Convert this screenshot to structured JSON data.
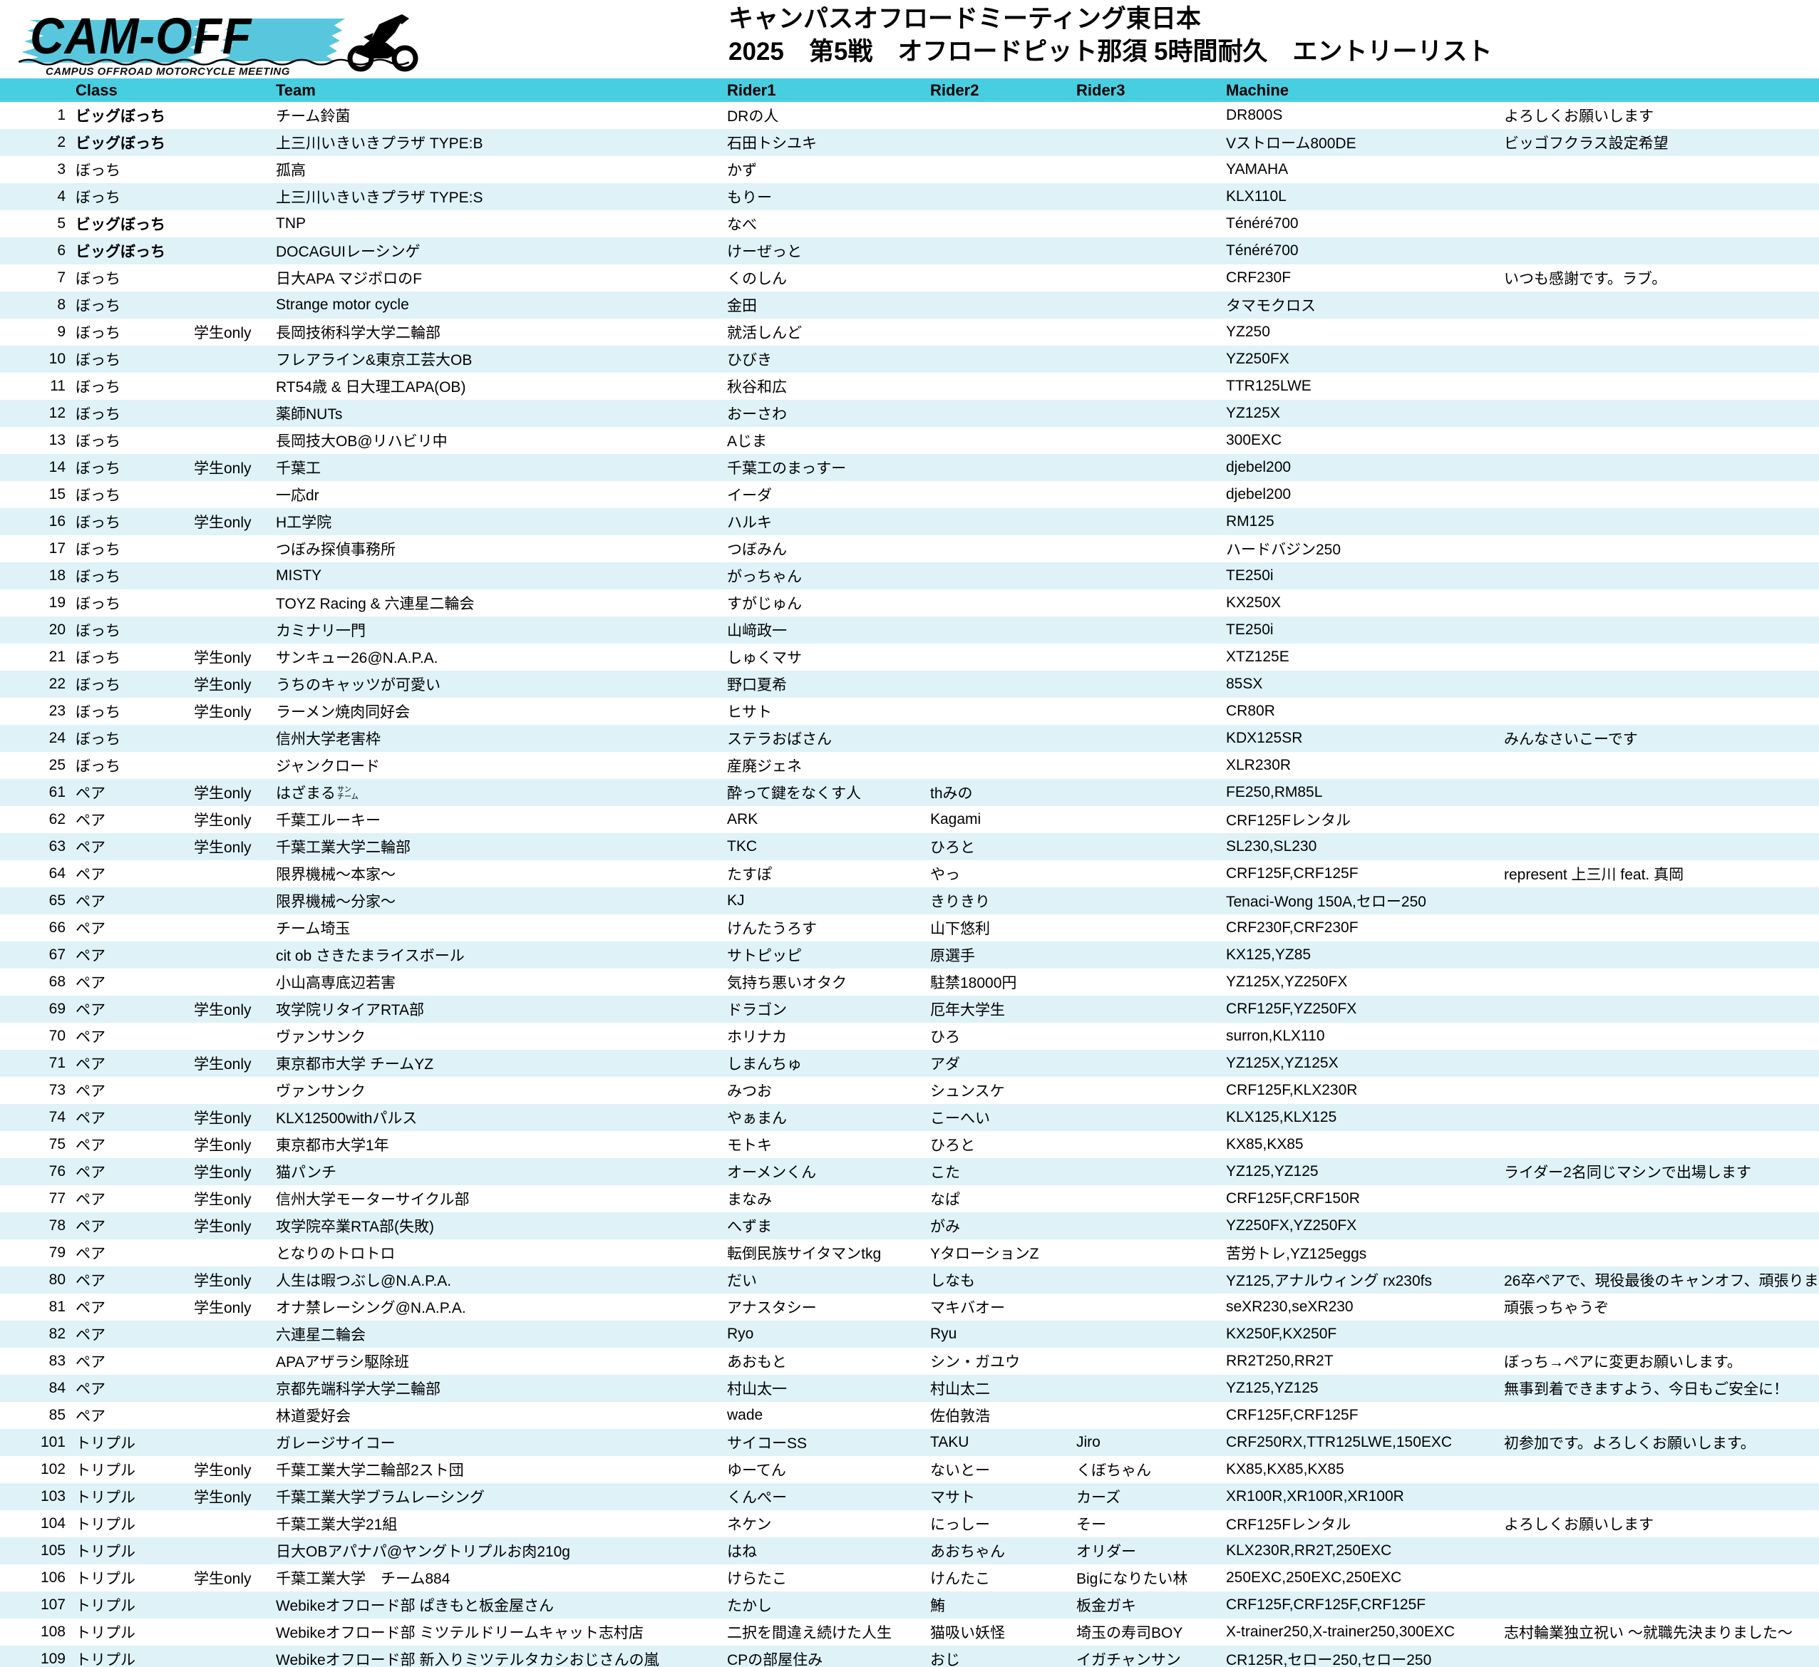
{
  "logo": {
    "name": "CAM-OFF",
    "subtitle": "CAMPUS OFFROAD MOTORCYCLE MEETING",
    "accent_color": "#58c7dd"
  },
  "header": {
    "title_line1": "キャンパスオフロードミーティング東日本",
    "title_line2": "2025　第5戦　オフロードピット那須 5時間耐久　エントリーリスト"
  },
  "table": {
    "columns": [
      "Class",
      "Team",
      "Rider1",
      "Rider2",
      "Rider3",
      "Machine"
    ],
    "colors": {
      "header_bg": "#48cee1",
      "row_bg": "#ffffff",
      "row_alt_bg": "#def2f8"
    },
    "rows": [
      {
        "num": "1",
        "cls": "ビッグぼっち",
        "bold": true,
        "student": "",
        "team": "チーム鈴菌",
        "rider1": "DRの人",
        "rider2": "",
        "rider3": "",
        "machine": "DR800S",
        "comment": "よろしくお願いします"
      },
      {
        "num": "2",
        "cls": "ビッグぼっち",
        "bold": true,
        "student": "",
        "team": "上三川いきいきプラザ TYPE:B",
        "rider1": "石田トシユキ",
        "rider2": "",
        "rider3": "",
        "machine": "Vストローム800DE",
        "comment": "ビッゴフクラス設定希望"
      },
      {
        "num": "3",
        "cls": "ぼっち",
        "bold": false,
        "student": "",
        "team": "孤高",
        "rider1": "かず",
        "rider2": "",
        "rider3": "",
        "machine": "YAMAHA",
        "comment": ""
      },
      {
        "num": "4",
        "cls": "ぼっち",
        "bold": false,
        "student": "",
        "team": "上三川いきいきプラザ TYPE:S",
        "rider1": "もりー",
        "rider2": "",
        "rider3": "",
        "machine": "KLX110L",
        "comment": ""
      },
      {
        "num": "5",
        "cls": "ビッグぼっち",
        "bold": true,
        "student": "",
        "team": "TNP",
        "rider1": "なべ",
        "rider2": "",
        "rider3": "",
        "machine": "Ténéré700",
        "comment": ""
      },
      {
        "num": "6",
        "cls": "ビッグぼっち",
        "bold": true,
        "student": "",
        "team": "DOCAGUIレーシンゲ",
        "rider1": "けーぜっと",
        "rider2": "",
        "rider3": "",
        "machine": "Ténéré700",
        "comment": ""
      },
      {
        "num": "7",
        "cls": "ぼっち",
        "bold": false,
        "student": "",
        "team": "日大APA マジボロのF",
        "rider1": "くのしん",
        "rider2": "",
        "rider3": "",
        "machine": "CRF230F",
        "comment": "いつも感謝です。ラブ。"
      },
      {
        "num": "8",
        "cls": "ぼっち",
        "bold": false,
        "student": "",
        "team": "Strange motor cycle",
        "rider1": "金田",
        "rider2": "",
        "rider3": "",
        "machine": "タマモクロス",
        "comment": ""
      },
      {
        "num": "9",
        "cls": "ぼっち",
        "bold": false,
        "student": "学生only",
        "team": "長岡技術科学大学二輪部",
        "rider1": "就活しんど",
        "rider2": "",
        "rider3": "",
        "machine": "YZ250",
        "comment": ""
      },
      {
        "num": "10",
        "cls": "ぼっち",
        "bold": false,
        "student": "",
        "team": "フレアライン&東京工芸大OB",
        "rider1": "ひびき",
        "rider2": "",
        "rider3": "",
        "machine": "YZ250FX",
        "comment": ""
      },
      {
        "num": "11",
        "cls": "ぼっち",
        "bold": false,
        "student": "",
        "team": "RT54歳 & 日大理工APA(OB)",
        "rider1": "秋谷和広",
        "rider2": "",
        "rider3": "",
        "machine": "TTR125LWE",
        "comment": ""
      },
      {
        "num": "12",
        "cls": "ぼっち",
        "bold": false,
        "student": "",
        "team": "薬師NUTs",
        "rider1": "おーさわ",
        "rider2": "",
        "rider3": "",
        "machine": "YZ125X",
        "comment": ""
      },
      {
        "num": "13",
        "cls": "ぼっち",
        "bold": false,
        "student": "",
        "team": "長岡技大OB@リハビリ中",
        "rider1": "Aじま",
        "rider2": "",
        "rider3": "",
        "machine": "300EXC",
        "comment": ""
      },
      {
        "num": "14",
        "cls": "ぼっち",
        "bold": false,
        "student": "学生only",
        "team": "千葉工",
        "rider1": "千葉工のまっすー",
        "rider2": "",
        "rider3": "",
        "machine": "djebel200",
        "comment": ""
      },
      {
        "num": "15",
        "cls": "ぼっち",
        "bold": false,
        "student": "",
        "team": "一応dr",
        "rider1": "イーダ",
        "rider2": "",
        "rider3": "",
        "machine": "djebel200",
        "comment": ""
      },
      {
        "num": "16",
        "cls": "ぼっち",
        "bold": false,
        "student": "学生only",
        "team": "H工学院",
        "rider1": "ハルキ",
        "rider2": "",
        "rider3": "",
        "machine": "RM125",
        "comment": ""
      },
      {
        "num": "17",
        "cls": "ぼっち",
        "bold": false,
        "student": "",
        "team": "つぼみ探偵事務所",
        "rider1": "つぼみん",
        "rider2": "",
        "rider3": "",
        "machine": "ハードバジン250",
        "comment": ""
      },
      {
        "num": "18",
        "cls": "ぼっち",
        "bold": false,
        "student": "",
        "team": "MISTY",
        "rider1": "がっちゃん",
        "rider2": "",
        "rider3": "",
        "machine": "TE250i",
        "comment": ""
      },
      {
        "num": "19",
        "cls": "ぼっち",
        "bold": false,
        "student": "",
        "team": "TOYZ Racing & 六連星二輪会",
        "rider1": "すがじゅん",
        "rider2": "",
        "rider3": "",
        "machine": "KX250X",
        "comment": ""
      },
      {
        "num": "20",
        "cls": "ぼっち",
        "bold": false,
        "student": "",
        "team": "カミナリ一門",
        "rider1": "山﨑政一",
        "rider2": "",
        "rider3": "",
        "machine": "TE250i",
        "comment": ""
      },
      {
        "num": "21",
        "cls": "ぼっち",
        "bold": false,
        "student": "学生only",
        "team": "サンキュー26@N.A.P.A.",
        "rider1": "しゅくマサ",
        "rider2": "",
        "rider3": "",
        "machine": "XTZ125E",
        "comment": ""
      },
      {
        "num": "22",
        "cls": "ぼっち",
        "bold": false,
        "student": "学生only",
        "team": "うちのキャッツが可愛い",
        "rider1": "野口夏希",
        "rider2": "",
        "rider3": "",
        "machine": "85SX",
        "comment": ""
      },
      {
        "num": "23",
        "cls": "ぼっち",
        "bold": false,
        "student": "学生only",
        "team": "ラーメン焼肉同好会",
        "rider1": "ヒサト",
        "rider2": "",
        "rider3": "",
        "machine": "CR80R",
        "comment": ""
      },
      {
        "num": "24",
        "cls": "ぼっち",
        "bold": false,
        "student": "",
        "team": "信州大学老害枠",
        "rider1": "ステラおばさん",
        "rider2": "",
        "rider3": "",
        "machine": "KDX125SR",
        "comment": "みんなさいこーです"
      },
      {
        "num": "25",
        "cls": "ぼっち",
        "bold": false,
        "student": "",
        "team": "ジャンクロード",
        "rider1": "産廃ジェネ",
        "rider2": "",
        "rider3": "",
        "machine": "XLR230R",
        "comment": ""
      },
      {
        "num": "61",
        "cls": "ペア",
        "bold": false,
        "student": "学生only",
        "team": "はざまる",
        "team_small": [
          "サン",
          "チーム"
        ],
        "rider1": "酔って鍵をなくす人",
        "rider2": "thみの",
        "rider3": "",
        "machine": "FE250,RM85L",
        "comment": ""
      },
      {
        "num": "62",
        "cls": "ペア",
        "bold": false,
        "student": "学生only",
        "team": "千葉工ルーキー",
        "rider1": "ARK",
        "rider2": "Kagami",
        "rider3": "",
        "machine": "CRF125Fレンタル",
        "comment": ""
      },
      {
        "num": "63",
        "cls": "ペア",
        "bold": false,
        "student": "学生only",
        "team": "千葉工業大学二輪部",
        "rider1": "TKC",
        "rider2": "ひろと",
        "rider3": "",
        "machine": "SL230,SL230",
        "comment": ""
      },
      {
        "num": "64",
        "cls": "ペア",
        "bold": false,
        "student": "",
        "team": "限界機械～本家～",
        "rider1": "たすぽ",
        "rider2": "やっ",
        "rider3": "",
        "machine": "CRF125F,CRF125F",
        "comment": "represent 上三川 feat. 真岡"
      },
      {
        "num": "65",
        "cls": "ペア",
        "bold": false,
        "student": "",
        "team": "限界機械～分家～",
        "rider1": "KJ",
        "rider2": "きりきり",
        "rider3": "",
        "machine": "Tenaci-Wong 150A,セロー250",
        "comment": ""
      },
      {
        "num": "66",
        "cls": "ペア",
        "bold": false,
        "student": "",
        "team": "チーム埼玉",
        "rider1": "けんたうろす",
        "rider2": "山下悠利",
        "rider3": "",
        "machine": "CRF230F,CRF230F",
        "comment": ""
      },
      {
        "num": "67",
        "cls": "ペア",
        "bold": false,
        "student": "",
        "team": "cit ob さきたまライスボール",
        "rider1": "サトピッピ",
        "rider2": "原選手",
        "rider3": "",
        "machine": "KX125,YZ85",
        "comment": ""
      },
      {
        "num": "68",
        "cls": "ペア",
        "bold": false,
        "student": "",
        "team": "小山高専底辺若害",
        "rider1": "気持ち悪いオタク",
        "rider2": "駐禁18000円",
        "rider3": "",
        "machine": "YZ125X,YZ250FX",
        "comment": ""
      },
      {
        "num": "69",
        "cls": "ペア",
        "bold": false,
        "student": "学生only",
        "team": "攻学院リタイアRTA部",
        "rider1": "ドラゴン",
        "rider2": "厄年大学生",
        "rider3": "",
        "machine": "CRF125F,YZ250FX",
        "comment": ""
      },
      {
        "num": "70",
        "cls": "ペア",
        "bold": false,
        "student": "",
        "team": "ヴァンサンク",
        "rider1": "ホリナカ",
        "rider2": "ひろ",
        "rider3": "",
        "machine": "surron,KLX110",
        "comment": ""
      },
      {
        "num": "71",
        "cls": "ペア",
        "bold": false,
        "student": "学生only",
        "team": "東京都市大学 チームYZ",
        "rider1": "しまんちゅ",
        "rider2": "アダ",
        "rider3": "",
        "machine": "YZ125X,YZ125X",
        "comment": ""
      },
      {
        "num": "73",
        "cls": "ペア",
        "bold": false,
        "student": "",
        "team": "ヴァンサンク",
        "rider1": "みつお",
        "rider2": "シュンスケ",
        "rider3": "",
        "machine": "CRF125F,KLX230R",
        "comment": ""
      },
      {
        "num": "74",
        "cls": "ペア",
        "bold": false,
        "student": "学生only",
        "team": "KLX12500withパルス",
        "rider1": "やぁまん",
        "rider2": "こーへい",
        "rider3": "",
        "machine": "KLX125,KLX125",
        "comment": ""
      },
      {
        "num": "75",
        "cls": "ペア",
        "bold": false,
        "student": "学生only",
        "team": "東京都市大学1年",
        "rider1": "モトキ",
        "rider2": "ひろと",
        "rider3": "",
        "machine": "KX85,KX85",
        "comment": ""
      },
      {
        "num": "76",
        "cls": "ペア",
        "bold": false,
        "student": "学生only",
        "team": "猫パンチ",
        "rider1": "オーメンくん",
        "rider2": "こた",
        "rider3": "",
        "machine": "YZ125,YZ125",
        "comment": "ライダー2名同じマシンで出場します"
      },
      {
        "num": "77",
        "cls": "ペア",
        "bold": false,
        "student": "学生only",
        "team": "信州大学モーターサイクル部",
        "rider1": "まなみ",
        "rider2": "なぱ",
        "rider3": "",
        "machine": "CRF125F,CRF150R",
        "comment": ""
      },
      {
        "num": "78",
        "cls": "ペア",
        "bold": false,
        "student": "学生only",
        "team": "攻学院卒業RTA部(失敗)",
        "rider1": "へずま",
        "rider2": "がみ",
        "rider3": "",
        "machine": "YZ250FX,YZ250FX",
        "comment": ""
      },
      {
        "num": "79",
        "cls": "ペア",
        "bold": false,
        "student": "",
        "team": "となりのトロトロ",
        "rider1": "転倒民族サイタマンtkg",
        "rider2": "YタローションZ",
        "rider3": "",
        "machine": "苦労トレ,YZ125eggs",
        "comment": ""
      },
      {
        "num": "80",
        "cls": "ペア",
        "bold": false,
        "student": "学生only",
        "team": "人生は暇つぶし@N.A.P.A.",
        "rider1": "だい",
        "rider2": "しなも",
        "rider3": "",
        "machine": "YZ125,アナルウィング rx230fs",
        "comment": "26卒ペアで、現役最後のキャンオフ、頑張りま"
      },
      {
        "num": "81",
        "cls": "ペア",
        "bold": false,
        "student": "学生only",
        "team": "オナ禁レーシング@N.A.P.A.",
        "rider1": "アナスタシー",
        "rider2": "マキバオー",
        "rider3": "",
        "machine": "seXR230,seXR230",
        "comment": "頑張っちゃうぞ"
      },
      {
        "num": "82",
        "cls": "ペア",
        "bold": false,
        "student": "",
        "team": "六連星二輪会",
        "rider1": "Ryo",
        "rider2": "Ryu",
        "rider3": "",
        "machine": "KX250F,KX250F",
        "comment": ""
      },
      {
        "num": "83",
        "cls": "ペア",
        "bold": false,
        "student": "",
        "team": "APAアザラシ駆除班",
        "rider1": "あおもと",
        "rider2": "シン・ガユウ",
        "rider3": "",
        "machine": "RR2T250,RR2T",
        "comment": "ぼっち→ペアに変更お願いします。"
      },
      {
        "num": "84",
        "cls": "ペア",
        "bold": false,
        "student": "",
        "team": "京都先端科学大学二輪部",
        "rider1": "村山太一",
        "rider2": "村山太二",
        "rider3": "",
        "machine": "YZ125,YZ125",
        "comment": "無事到着できますよう、今日もご安全に！"
      },
      {
        "num": "85",
        "cls": "ペア",
        "bold": false,
        "student": "",
        "team": "林道愛好会",
        "rider1": "wade",
        "rider2": "佐伯敦浩",
        "rider3": "",
        "machine": "CRF125F,CRF125F",
        "comment": ""
      },
      {
        "num": "101",
        "cls": "トリプル",
        "bold": false,
        "student": "",
        "team": "ガレージサイコー",
        "rider1": "サイコーSS",
        "rider2": "TAKU",
        "rider3": "Jiro",
        "machine": "CRF250RX,TTR125LWE,150EXC",
        "comment": "初参加です。よろしくお願いします。"
      },
      {
        "num": "102",
        "cls": "トリプル",
        "bold": false,
        "student": "学生only",
        "team": "千葉工業大学二輪部2スト団",
        "rider1": "ゆーてん",
        "rider2": "ないとー",
        "rider3": "くぼちゃん",
        "machine": "KX85,KX85,KX85",
        "comment": ""
      },
      {
        "num": "103",
        "cls": "トリプル",
        "bold": false,
        "student": "学生only",
        "team": "千葉工業大学ブラムレーシング",
        "rider1": "くんぺー",
        "rider2": "マサト",
        "rider3": "カーズ",
        "machine": "XR100R,XR100R,XR100R",
        "comment": ""
      },
      {
        "num": "104",
        "cls": "トリプル",
        "bold": false,
        "student": "",
        "team": "千葉工業大学21組",
        "rider1": "ネケン",
        "rider2": "にっしー",
        "rider3": "そー",
        "machine": "CRF125Fレンタル",
        "comment": "よろしくお願いします"
      },
      {
        "num": "105",
        "cls": "トリプル",
        "bold": false,
        "student": "",
        "team": "日大OBアパナパ@ヤングトリプルお肉210g",
        "rider1": "はね",
        "rider2": "あおちゃん",
        "rider3": "オリダー",
        "machine": "KLX230R,RR2T,250EXC",
        "comment": ""
      },
      {
        "num": "106",
        "cls": "トリプル",
        "bold": false,
        "student": "学生only",
        "team": "千葉工業大学　チーム884",
        "rider1": "けらたこ",
        "rider2": "けんたこ",
        "rider3": "Bigになりたい林",
        "machine": "250EXC,250EXC,250EXC",
        "comment": ""
      },
      {
        "num": "107",
        "cls": "トリプル",
        "bold": false,
        "student": "",
        "team": "Webikeオフロード部 ぱきもと板金屋さん",
        "rider1": "たかし",
        "rider2": "鮪",
        "rider3": "板金ガキ",
        "machine": "CRF125F,CRF125F,CRF125F",
        "comment": ""
      },
      {
        "num": "108",
        "cls": "トリプル",
        "bold": false,
        "student": "",
        "team": "Webikeオフロード部 ミツテルドリームキャット志村店",
        "rider1": "二択を間違え続けた人生",
        "rider2": "猫吸い妖怪",
        "rider3": "埼玉の寿司BOY",
        "machine": "X-trainer250,X-trainer250,300EXC",
        "comment": "志村輪業独立祝い ～就職先決まりました～"
      },
      {
        "num": "109",
        "cls": "トリプル",
        "bold": false,
        "student": "",
        "team": "Webikeオフロード部 新入りミツテルタカシおじさんの嵐",
        "rider1": "CPの部屋住み",
        "rider2": "おじ",
        "rider3": "イガチャンサン",
        "machine": "CR125R,セロー250,セロー250",
        "comment": ""
      }
    ]
  }
}
